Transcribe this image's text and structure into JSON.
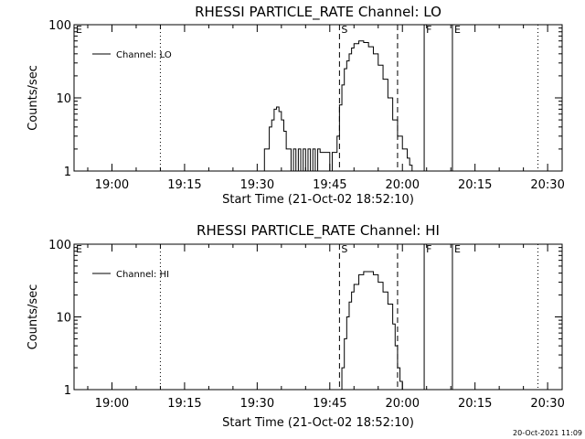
{
  "footer": {
    "timestamp": "20-Oct-2021 11:09"
  },
  "chart_data": [
    {
      "type": "line",
      "title": "RHESSI PARTICLE_RATE Channel: LO",
      "xlabel": "Start Time (21-Oct-02 18:52:10)",
      "ylabel": "Counts/sec",
      "xlim": [
        "18:52:10",
        "20:33:00"
      ],
      "ylim": [
        1,
        100
      ],
      "y_scale": "log",
      "grid": false,
      "legend_position": "top-left",
      "x_ticks": [
        "19:00",
        "19:15",
        "19:30",
        "19:45",
        "20:00",
        "20:15",
        "20:30"
      ],
      "y_ticks": [
        "1",
        "10",
        "100"
      ],
      "series": [
        {
          "name": "Channel: LO",
          "x": [
            "19:31:00",
            "19:31:30",
            "19:32:00",
            "19:32:30",
            "19:33:00",
            "19:33:30",
            "19:34:00",
            "19:34:30",
            "19:35:00",
            "19:35:30",
            "19:36:00",
            "19:36:30",
            "19:37:00",
            "19:37:30",
            "19:38:00",
            "19:38:30",
            "19:39:00",
            "19:39:30",
            "19:40:00",
            "19:40:30",
            "19:41:00",
            "19:41:30",
            "19:42:00",
            "19:42:30",
            "19:43:00",
            "19:43:30",
            "19:44:00",
            "19:44:30",
            "19:45:00",
            "19:45:30",
            "19:46:00",
            "19:46:30",
            "19:47:00",
            "19:47:30",
            "19:48:00",
            "19:48:30",
            "19:49:00",
            "19:49:30",
            "19:50:00",
            "19:51:00",
            "19:52:00",
            "19:53:00",
            "19:54:00",
            "19:55:00",
            "19:56:00",
            "19:57:00",
            "19:58:00",
            "19:59:00",
            "20:00:00",
            "20:01:00",
            "20:01:30",
            "20:02:00",
            "20:02:30"
          ],
          "values": [
            1,
            2,
            2,
            4,
            5,
            7,
            7.5,
            6.5,
            5,
            3.5,
            2,
            2,
            1,
            2,
            1,
            2,
            1,
            2,
            1,
            2,
            1,
            2,
            1,
            2,
            1.8,
            1.8,
            1.8,
            1.8,
            1,
            1.8,
            1.8,
            3,
            8,
            15,
            25,
            32,
            40,
            48,
            55,
            60,
            57,
            50,
            40,
            28,
            18,
            10,
            5,
            3,
            2,
            1.5,
            1.2,
            1,
            1
          ]
        }
      ],
      "annotations": [
        {
          "label": "E",
          "time": "18:52:10",
          "style": "dotted"
        },
        {
          "label": "",
          "time": "19:10:00",
          "style": "dotted"
        },
        {
          "label": "S",
          "time": "19:47:00",
          "style": "dashed"
        },
        {
          "label": "",
          "time": "19:59:00",
          "style": "dashed"
        },
        {
          "label": "F",
          "time": "20:04:30",
          "style": "solid"
        },
        {
          "label": "E",
          "time": "20:10:20",
          "style": "solid"
        },
        {
          "label": "",
          "time": "20:28:00",
          "style": "dotted"
        }
      ]
    },
    {
      "type": "line",
      "title": "RHESSI PARTICLE_RATE Channel: HI",
      "xlabel": "Start Time (21-Oct-02 18:52:10)",
      "ylabel": "Counts/sec",
      "xlim": [
        "18:52:10",
        "20:33:00"
      ],
      "ylim": [
        1,
        100
      ],
      "y_scale": "log",
      "grid": false,
      "legend_position": "top-left",
      "x_ticks": [
        "19:00",
        "19:15",
        "19:30",
        "19:45",
        "20:00",
        "20:15",
        "20:30"
      ],
      "y_ticks": [
        "1",
        "10",
        "100"
      ],
      "series": [
        {
          "name": "Channel: HI",
          "x": [
            "19:47:00",
            "19:47:30",
            "19:48:00",
            "19:48:30",
            "19:49:00",
            "19:49:30",
            "19:50:00",
            "19:51:00",
            "19:52:00",
            "19:53:00",
            "19:54:00",
            "19:55:00",
            "19:56:00",
            "19:57:00",
            "19:58:00",
            "19:58:30",
            "19:59:00",
            "19:59:30",
            "20:00:00"
          ],
          "values": [
            1,
            2,
            5,
            10,
            16,
            22,
            28,
            38,
            42,
            42,
            38,
            30,
            22,
            15,
            8,
            4,
            2,
            1.3,
            1
          ]
        }
      ],
      "annotations": [
        {
          "label": "E",
          "time": "18:52:10",
          "style": "dotted"
        },
        {
          "label": "",
          "time": "19:10:00",
          "style": "dotted"
        },
        {
          "label": "S",
          "time": "19:47:00",
          "style": "dashed"
        },
        {
          "label": "",
          "time": "19:59:00",
          "style": "dashed"
        },
        {
          "label": "F",
          "time": "20:04:30",
          "style": "solid"
        },
        {
          "label": "E",
          "time": "20:10:20",
          "style": "solid"
        },
        {
          "label": "",
          "time": "20:28:00",
          "style": "dotted"
        }
      ]
    }
  ]
}
